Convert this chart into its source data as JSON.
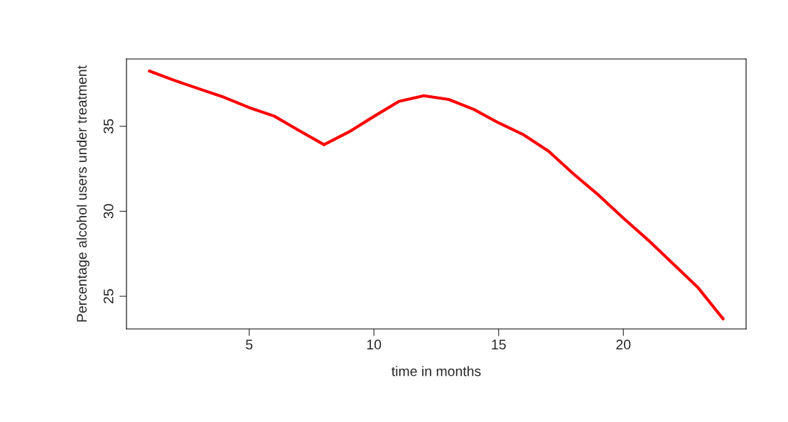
{
  "chart_data": {
    "type": "line",
    "xlabel": "time in months",
    "ylabel": "Percentage alcohol users under treatment",
    "x": [
      1,
      2,
      3,
      4,
      5,
      6,
      7,
      8,
      9,
      10,
      11,
      12,
      13,
      14,
      15,
      16,
      17,
      18,
      19,
      20,
      21,
      22,
      23,
      24
    ],
    "series": [
      {
        "color": "#ff0000",
        "values": [
          38.25,
          37.7,
          37.2,
          36.7,
          36.1,
          35.6,
          34.75,
          33.92,
          34.67,
          35.58,
          36.46,
          36.8,
          36.58,
          36.0,
          35.2,
          34.5,
          33.54,
          32.2,
          30.96,
          29.6,
          28.3,
          26.9,
          25.5,
          23.67
        ]
      }
    ],
    "xlim": [
      0.08,
      24.92
    ],
    "ylim": [
      23.08,
      38.96
    ],
    "xticks": [
      5,
      10,
      15,
      20
    ],
    "yticks": [
      25,
      30,
      35
    ],
    "grid": false,
    "legend": false,
    "line_style": "solid",
    "marker": "none"
  }
}
